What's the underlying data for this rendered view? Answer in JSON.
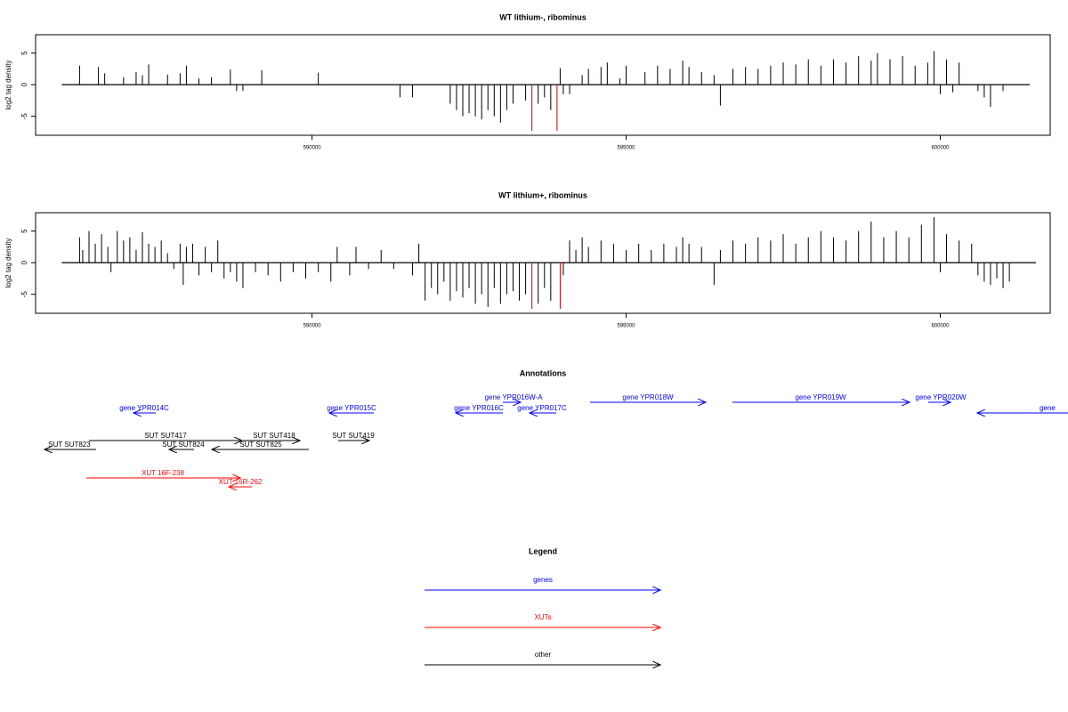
{
  "chart_data": [
    {
      "type": "needle",
      "title": "WT lithium-, ribominus",
      "ylabel": "log2 tag density",
      "xlim": [
        585600,
        601750
      ],
      "xticks": [
        590000,
        595000,
        600000
      ],
      "ylim": [
        -8,
        7.9
      ],
      "yticks": [
        -5,
        0,
        5
      ],
      "series": [
        {
          "color": "#000000",
          "x": [
            586300,
            586600,
            586700,
            587000,
            587200,
            587300,
            587400,
            587700,
            587900,
            588000,
            588200,
            588400,
            588700,
            588800,
            588900,
            589200,
            590100,
            591400,
            591600,
            592200,
            592300,
            592400,
            592500,
            592600,
            592700,
            592800,
            592900,
            593000,
            593100,
            593200,
            593400,
            593600,
            593700,
            593800,
            593950,
            594000,
            594100,
            594300,
            594400,
            594600,
            594700,
            594900,
            595000,
            595300,
            595500,
            595700,
            595900,
            596000,
            596200,
            596400,
            596500,
            596700,
            596900,
            597100,
            597300,
            597500,
            597700,
            597900,
            598100,
            598300,
            598500,
            598700,
            598900,
            599000,
            599200,
            599400,
            599600,
            599800,
            599900,
            600000,
            600100,
            600200,
            600300,
            600600,
            600700,
            600800,
            601000
          ],
          "values": [
            3,
            2.8,
            1.8,
            1.2,
            2,
            1.5,
            3.2,
            1.6,
            1.8,
            3,
            1,
            1.2,
            2.4,
            -1,
            -1,
            2.3,
            1.9,
            -2,
            -2,
            -3,
            -4,
            -5,
            -4.5,
            -5,
            -5.5,
            -4,
            -5,
            -6,
            -4,
            -3,
            -2.5,
            -3,
            -2,
            -4,
            2.6,
            -1.5,
            -1.5,
            1.5,
            2.5,
            2.8,
            3.5,
            1,
            3,
            2,
            3,
            2.5,
            3.8,
            2.8,
            2,
            1.5,
            -3.3,
            2.5,
            2.8,
            2.5,
            3,
            3.5,
            3.2,
            4,
            3,
            4,
            3.5,
            4.5,
            3.8,
            5,
            4,
            4.5,
            3,
            3.5,
            5.3,
            -1.5,
            4,
            -1.2,
            3.5,
            -1,
            -2,
            -3.5,
            -1
          ]
        },
        {
          "color": "#cc0000",
          "x": [
            593500,
            593900
          ],
          "values": [
            -7.3,
            -7.3
          ]
        }
      ]
    },
    {
      "type": "needle",
      "title": "WT lithium+, ribominus",
      "ylabel": "log2 tag density",
      "xlim": [
        585600,
        601750
      ],
      "xticks": [
        590000,
        595000,
        600000
      ],
      "ylim": [
        -8,
        7.9
      ],
      "yticks": [
        -5,
        0,
        5
      ],
      "series": [
        {
          "color": "#000000",
          "x": [
            586300,
            586350,
            586450,
            586550,
            586650,
            586750,
            586800,
            586900,
            587000,
            587100,
            587200,
            587300,
            587400,
            587500,
            587600,
            587700,
            587800,
            587900,
            587950,
            588000,
            588100,
            588200,
            588300,
            588400,
            588500,
            588600,
            588700,
            588800,
            588900,
            589100,
            589300,
            589500,
            589700,
            589900,
            590100,
            590300,
            590400,
            590600,
            590700,
            590900,
            591100,
            591300,
            591600,
            591700,
            591800,
            591900,
            592000,
            592100,
            592200,
            592300,
            592400,
            592500,
            592600,
            592700,
            592800,
            592900,
            593000,
            593100,
            593200,
            593300,
            593400,
            593600,
            593700,
            593800,
            594000,
            594100,
            594200,
            594300,
            594400,
            594600,
            594800,
            595000,
            595200,
            595400,
            595600,
            595800,
            595900,
            596000,
            596200,
            596400,
            596500,
            596700,
            596900,
            597100,
            597300,
            597500,
            597700,
            597900,
            598100,
            598300,
            598500,
            598700,
            598900,
            599100,
            599300,
            599500,
            599700,
            599900,
            600000,
            600100,
            600300,
            600500,
            600600,
            600700,
            600800,
            600900,
            601000,
            601100
          ],
          "values": [
            4,
            2,
            5,
            3,
            4.5,
            2.5,
            -1.5,
            5,
            3.5,
            4,
            2,
            4.8,
            3,
            2.5,
            3.5,
            1.5,
            -1,
            3,
            -3.5,
            2.5,
            3,
            -2,
            2.5,
            -1.5,
            3.5,
            -2.5,
            -1.5,
            -3,
            -4,
            -1.5,
            -2,
            -3,
            -1.5,
            -2.5,
            -1.5,
            -3,
            2.5,
            -2,
            2.5,
            -1,
            2,
            -1,
            -2,
            3,
            -6,
            -4,
            -5,
            -3,
            -6,
            -4.5,
            -5.5,
            -4,
            -6.5,
            -5,
            -7,
            -4,
            -6.5,
            -5,
            -4.5,
            -6,
            -5,
            -6.5,
            -4,
            -6,
            -2,
            3.5,
            2,
            4,
            2.5,
            3.5,
            3,
            2,
            3,
            2,
            3,
            2.5,
            4,
            3,
            2.5,
            -3.5,
            2,
            3.5,
            3,
            4,
            3.5,
            4.5,
            3,
            4,
            5,
            4,
            3.5,
            5,
            6.5,
            4,
            5,
            4,
            6,
            7.2,
            -1.5,
            4.5,
            3.5,
            3,
            -2,
            -3,
            -3.5,
            -2.5,
            -4,
            -3
          ]
        },
        {
          "color": "#cc0000",
          "x": [
            593500,
            593950
          ],
          "values": [
            -7.3,
            -7.3
          ]
        }
      ]
    }
  ],
  "annotations": {
    "title": "Annotations",
    "items": [
      {
        "label": "gene YPR014C",
        "color": "#0000ff"
      },
      {
        "label": "gene YPR015C",
        "color": "#0000ff"
      },
      {
        "label": "gene YPR016W-A",
        "color": "#0000ff"
      },
      {
        "label": "gene YPR016C",
        "color": "#0000ff"
      },
      {
        "label": "gene YPR017C",
        "color": "#0000ff"
      },
      {
        "label": "gene YPR018W",
        "color": "#0000ff"
      },
      {
        "label": "gene YPR019W",
        "color": "#0000ff"
      },
      {
        "label": "gene YPR020W",
        "color": "#0000ff"
      },
      {
        "label": "gene",
        "color": "#0000ff"
      },
      {
        "label": "SUT SUT417",
        "color": "#000000"
      },
      {
        "label": "SUT SUT418",
        "color": "#000000"
      },
      {
        "label": "SUT SUT419",
        "color": "#000000"
      },
      {
        "label": "SUT SUT823",
        "color": "#000000"
      },
      {
        "label": "SUT SUT824",
        "color": "#000000"
      },
      {
        "label": "SUT SUT825",
        "color": "#000000"
      },
      {
        "label": "XUT 16F-238",
        "color": "#ff0000"
      },
      {
        "label": "XUT 16R-262",
        "color": "#ff0000"
      }
    ]
  },
  "legend": {
    "title": "Legend",
    "items": [
      {
        "label": "genes",
        "color": "#0000ff"
      },
      {
        "label": "XUTs",
        "color": "#ff0000"
      },
      {
        "label": "other",
        "color": "#000000"
      }
    ]
  }
}
